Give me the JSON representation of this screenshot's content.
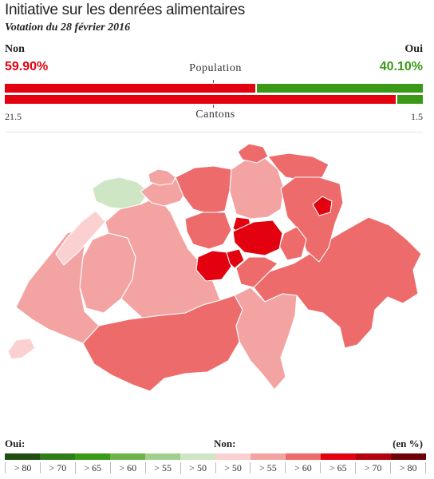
{
  "header": {
    "title": "Initiative sur les denrées alimentaires",
    "subtitle": "Votation du 28 février 2016"
  },
  "results": {
    "non_label": "Non",
    "oui_label": "Oui",
    "non_pct": "59.90%",
    "oui_pct": "40.10%",
    "non_share": 0.599,
    "population_label": "Population",
    "cantons_label": "Cantons",
    "cantons_non": "21.5",
    "cantons_oui": "1.5",
    "cantons_non_share": 0.935
  },
  "legend": {
    "oui_label": "Oui:",
    "non_label": "Non:",
    "unit_label": "(en %)",
    "colors": [
      "#1f4d12",
      "#2e7d1a",
      "#3a9a18",
      "#6db34a",
      "#a3cf8e",
      "#cfe6c4",
      "#fbd0d0",
      "#f4a3a3",
      "#ee6b6b",
      "#e3000f",
      "#b3000c",
      "#6e0008"
    ],
    "ticks": [
      "> 80",
      "> 70",
      "> 65",
      "> 60",
      "> 55",
      "> 50",
      "> 50",
      "> 55",
      "> 60",
      "> 65",
      "> 70",
      "> 80"
    ]
  }
}
